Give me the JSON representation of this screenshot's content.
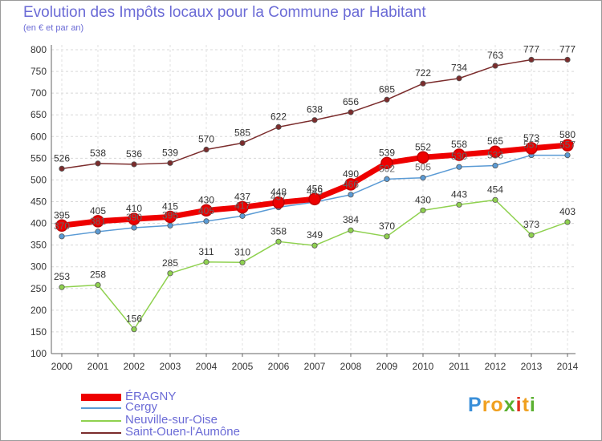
{
  "title": "Evolution des Impôts locaux pour la Commune par Habitant",
  "subtitle": "(en € et par an)",
  "logo": {
    "letters": [
      "P",
      "r",
      "o",
      "x",
      "i",
      "t",
      "i"
    ],
    "colors": [
      "#3a8fd9",
      "#f0a020",
      "#f0a020",
      "#5ab030",
      "#e03020",
      "#f0a020",
      "#5ab030"
    ]
  },
  "chart_data": {
    "type": "line",
    "categories": [
      "2000",
      "2001",
      "2002",
      "2003",
      "2004",
      "2005",
      "2006",
      "2007",
      "2008",
      "2009",
      "2010",
      "2011",
      "2012",
      "2013",
      "2014"
    ],
    "ylim": [
      100,
      800
    ],
    "yticks": [
      100,
      150,
      200,
      250,
      300,
      350,
      400,
      450,
      500,
      550,
      600,
      650,
      700,
      750,
      800
    ],
    "grid": true,
    "legend_position": "bottom-left",
    "series": [
      {
        "name": "ÉRAGNY",
        "color": "#ee0000",
        "values": [
          395,
          405,
          410,
          415,
          430,
          437,
          448,
          456,
          490,
          539,
          552,
          558,
          565,
          573,
          580
        ]
      },
      {
        "name": "Cergy",
        "color": "#5b9bd5",
        "values": [
          370,
          381,
          390,
          395,
          405,
          417,
          437,
          449,
          466,
          502,
          505,
          530,
          533,
          557,
          557
        ]
      },
      {
        "name": "Neuville-sur-Oise",
        "color": "#8fd14f",
        "values": [
          253,
          258,
          156,
          285,
          311,
          310,
          358,
          349,
          384,
          370,
          430,
          443,
          454,
          373,
          403
        ]
      },
      {
        "name": "Saint-Ouen-l'Aumône",
        "color": "#7b2c2c",
        "values": [
          526,
          538,
          536,
          539,
          570,
          585,
          622,
          638,
          656,
          685,
          722,
          734,
          763,
          777,
          777
        ]
      }
    ]
  }
}
